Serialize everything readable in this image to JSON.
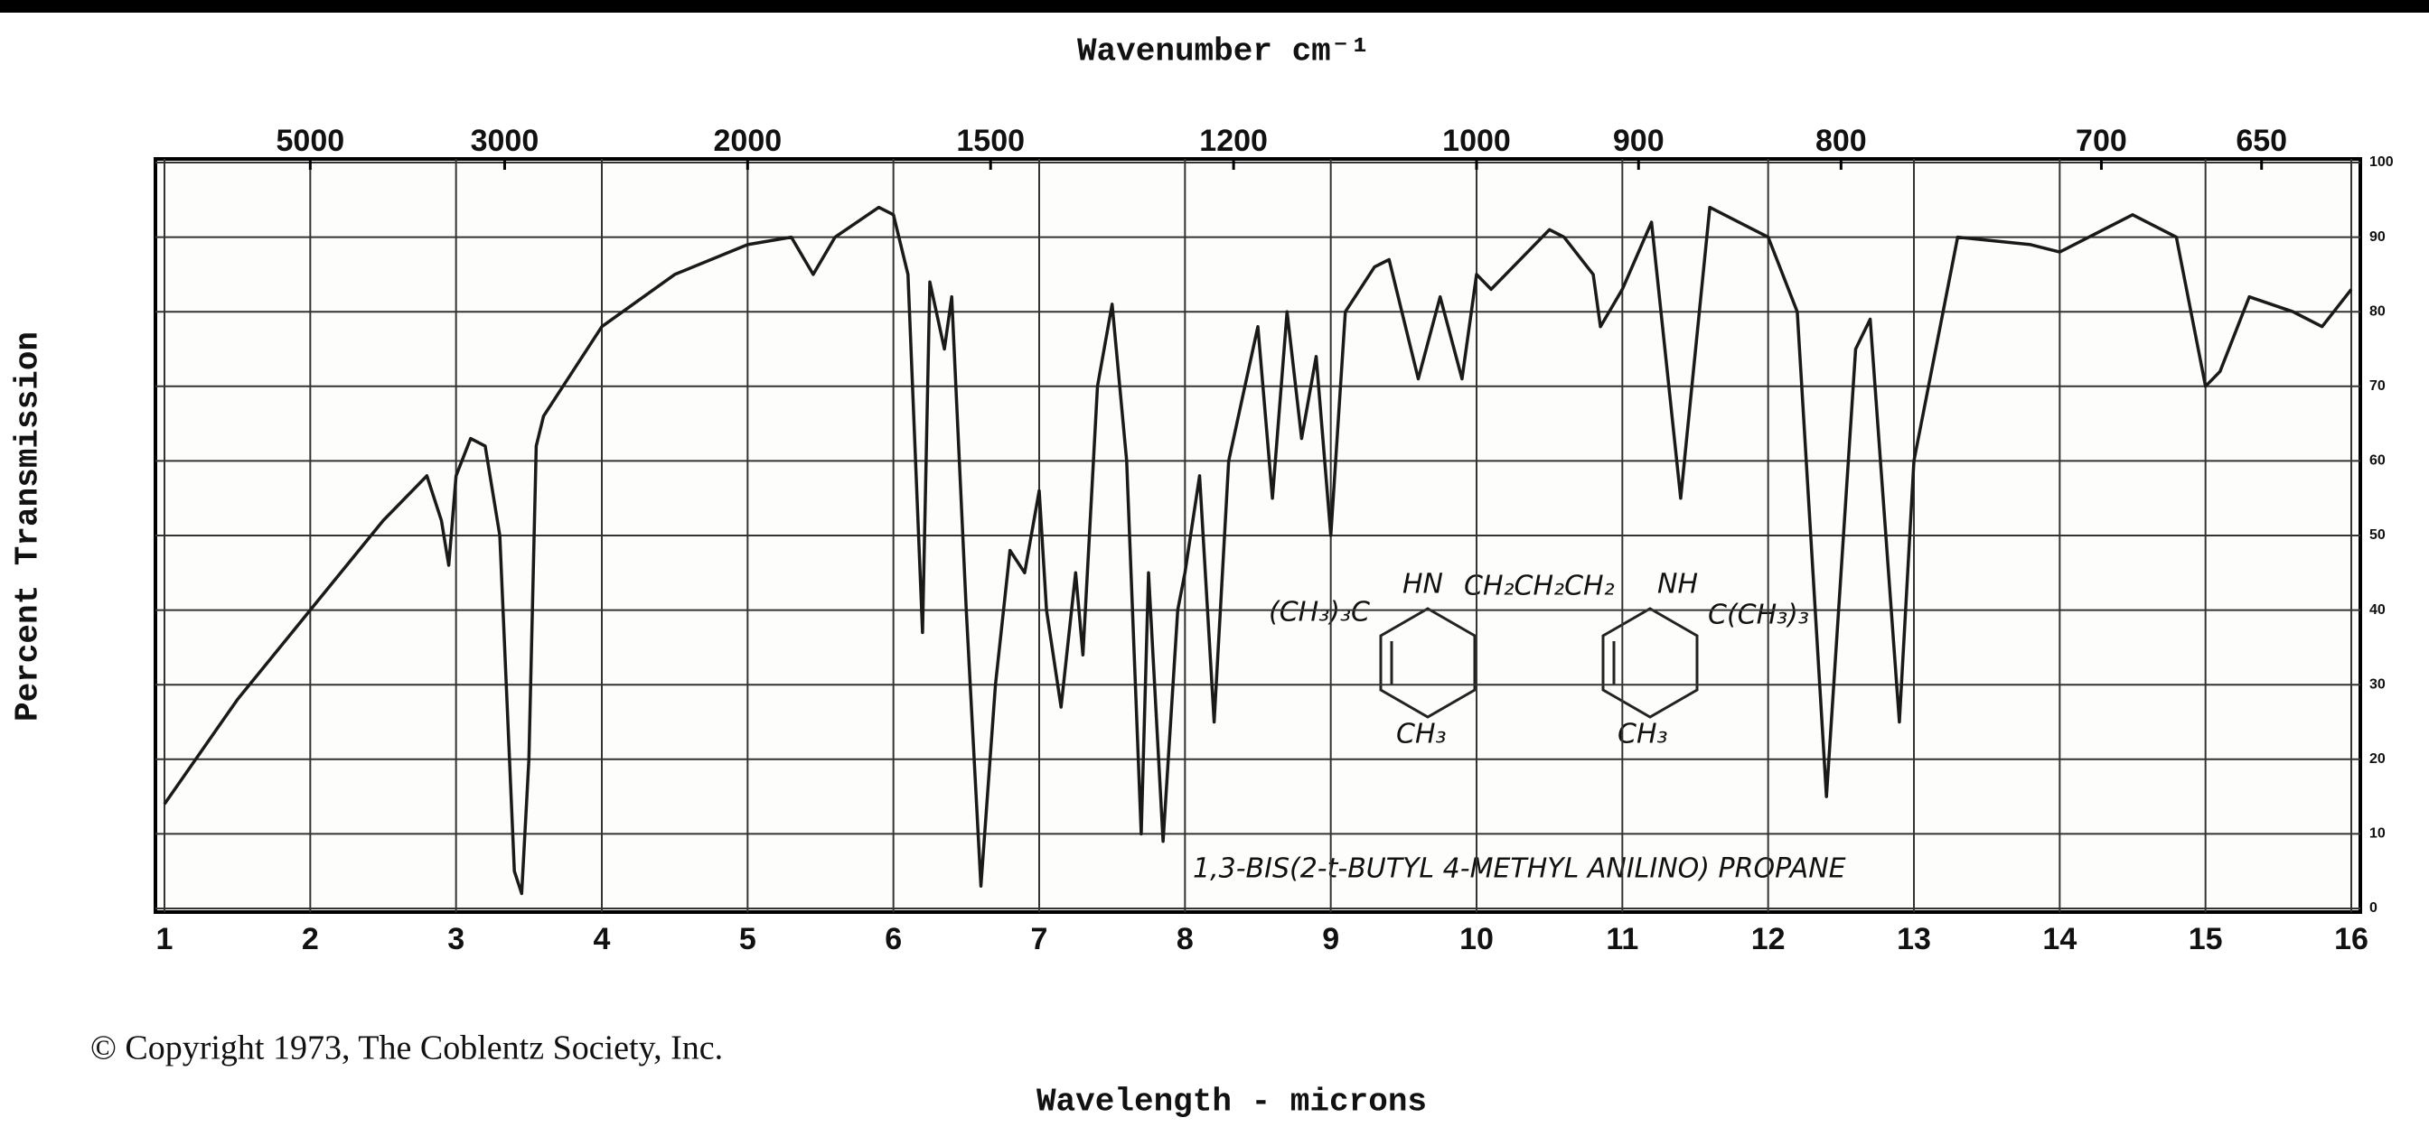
{
  "chart_data": {
    "type": "line",
    "x_label": "Wavelength - microns",
    "y_label": "Percent Transmission",
    "x2_label": "Wavenumber cm⁻¹",
    "x": [
      1.0,
      1.5,
      2.0,
      2.5,
      2.8,
      2.9,
      2.95,
      3.0,
      3.1,
      3.2,
      3.3,
      3.4,
      3.45,
      3.5,
      3.55,
      3.6,
      4.0,
      4.5,
      5.0,
      5.3,
      5.45,
      5.6,
      5.9,
      6.0,
      6.1,
      6.2,
      6.25,
      6.35,
      6.4,
      6.5,
      6.6,
      6.7,
      6.8,
      6.9,
      7.0,
      7.05,
      7.15,
      7.25,
      7.3,
      7.4,
      7.5,
      7.6,
      7.7,
      7.75,
      7.85,
      7.95,
      8.0,
      8.1,
      8.2,
      8.3,
      8.5,
      8.6,
      8.7,
      8.8,
      8.9,
      9.0,
      9.1,
      9.3,
      9.4,
      9.6,
      9.75,
      9.9,
      10.0,
      10.1,
      10.5,
      10.6,
      10.8,
      10.85,
      11.0,
      11.2,
      11.4,
      11.6,
      12.0,
      12.2,
      12.4,
      12.6,
      12.7,
      12.9,
      13.0,
      13.3,
      13.8,
      14.0,
      14.5,
      14.8,
      15.0,
      15.1,
      15.3,
      15.6,
      15.8,
      16.0
    ],
    "series": [
      {
        "color": "#1a1a1a",
        "values": [
          14,
          28,
          40,
          52,
          58,
          52,
          46,
          58,
          63,
          62,
          50,
          5,
          2,
          20,
          62,
          66,
          78,
          85,
          89,
          90,
          85,
          90,
          94,
          93,
          85,
          37,
          84,
          75,
          82,
          40,
          3,
          30,
          48,
          45,
          56,
          40,
          27,
          45,
          34,
          70,
          81,
          60,
          10,
          45,
          9,
          40,
          45,
          58,
          25,
          60,
          78,
          55,
          80,
          63,
          74,
          50,
          80,
          86,
          87,
          71,
          82,
          71,
          85,
          83,
          91,
          90,
          85,
          78,
          83,
          92,
          55,
          94,
          90,
          80,
          15,
          75,
          79,
          25,
          60,
          90,
          89,
          88,
          93,
          90,
          70,
          72,
          82,
          80,
          78,
          83
        ]
      }
    ],
    "xlim": [
      1,
      16
    ],
    "xticks": [
      1,
      2,
      3,
      4,
      5,
      6,
      7,
      8,
      9,
      10,
      11,
      12,
      13,
      14,
      15,
      16
    ],
    "ylim": [
      0,
      100
    ],
    "yticks": [
      0,
      10,
      20,
      30,
      40,
      50,
      60,
      70,
      80,
      90,
      100
    ],
    "x2ticks": [
      5000,
      3000,
      2000,
      1500,
      1200,
      1000,
      900,
      800,
      700,
      650
    ],
    "grid": true,
    "annotations": [
      "(CH₃)₃C",
      "HN",
      "CH₂CH₂CH₂",
      "NH",
      "C(CH₃)₃",
      "CH₃",
      "CH₃",
      "1,3-BIS(2-t-BUTYL 4-METHYL ANILINO) PROPANE"
    ],
    "footnote": "© Copyright 1973, The Coblentz Society, Inc."
  }
}
